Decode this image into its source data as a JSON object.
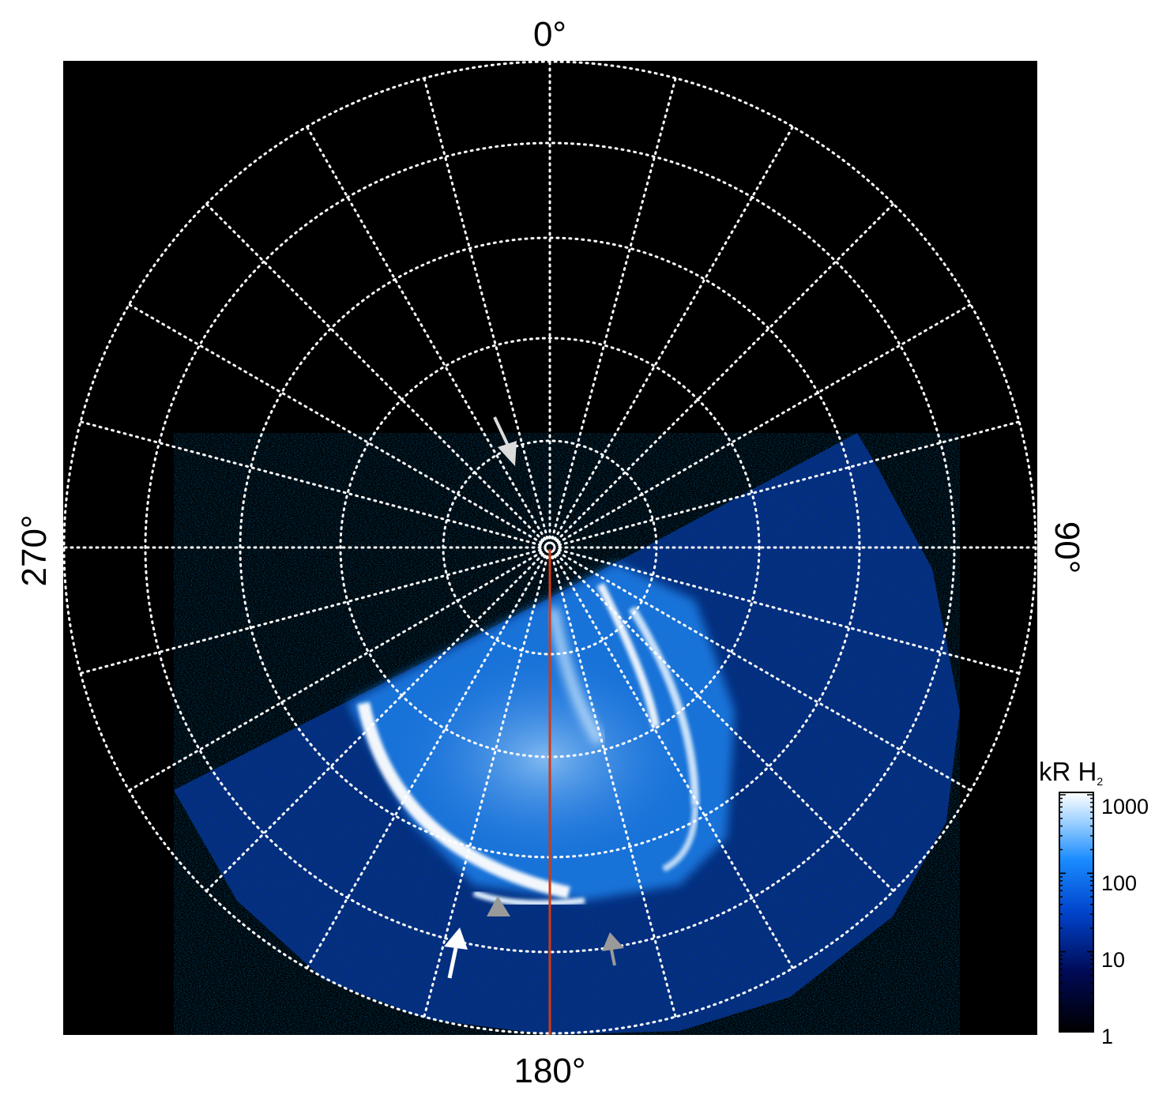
{
  "compass_labels": {
    "top": "0°",
    "right": "90°",
    "bottom": "180°",
    "left": "270°"
  },
  "colorbar": {
    "title_main": "kR H",
    "title_sub": "2",
    "scale": "log",
    "range": [
      1,
      1000
    ],
    "tick_labels": [
      "1000",
      "100",
      "10",
      "1"
    ],
    "colors": [
      "#000000",
      "#000a55",
      "#0044cc",
      "#1a8cff",
      "#9fd2ff",
      "#ffffff"
    ]
  },
  "colors": {
    "background": "#000000",
    "grid": "#ffffff",
    "meridian_line": "#d43a10",
    "arrow_white": "#ffffff",
    "arrow_gray": "#9a9a9a"
  }
}
